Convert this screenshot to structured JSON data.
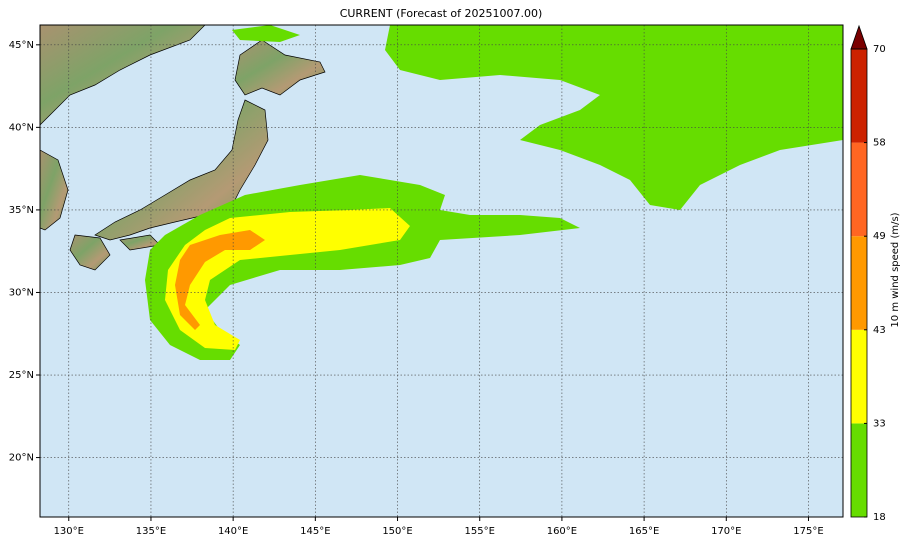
{
  "title": "CURRENT (Forecast of 20251007.00)",
  "map": {
    "lonlim": [
      128.25,
      177.1
    ],
    "latlim": [
      16.4,
      46.2
    ],
    "lon_ticks": [
      {
        "value": 130,
        "label": "130°E"
      },
      {
        "value": 135,
        "label": "135°E"
      },
      {
        "value": 140,
        "label": "140°E"
      },
      {
        "value": 145,
        "label": "145°E"
      },
      {
        "value": 150,
        "label": "150°E"
      },
      {
        "value": 155,
        "label": "155°E"
      },
      {
        "value": 160,
        "label": "160°E"
      },
      {
        "value": 165,
        "label": "165°E"
      },
      {
        "value": 170,
        "label": "170°E"
      },
      {
        "value": 175,
        "label": "175°E"
      }
    ],
    "lat_ticks": [
      {
        "value": 20,
        "label": "20°N"
      },
      {
        "value": 25,
        "label": "25°N"
      },
      {
        "value": 30,
        "label": "30°N"
      },
      {
        "value": 35,
        "label": "35°N"
      },
      {
        "value": 40,
        "label": "40°N"
      },
      {
        "value": 45,
        "label": "45°N"
      }
    ],
    "grid": true
  },
  "colorbar": {
    "label": "10 m wind speed (m/s)",
    "ticks": [
      18,
      33,
      43,
      49,
      58,
      70
    ],
    "colors": [
      "#66dd00",
      "#ffff00",
      "#ff9900",
      "#ff6622",
      "#cc2200"
    ],
    "extend_color": "#7a0000"
  }
}
